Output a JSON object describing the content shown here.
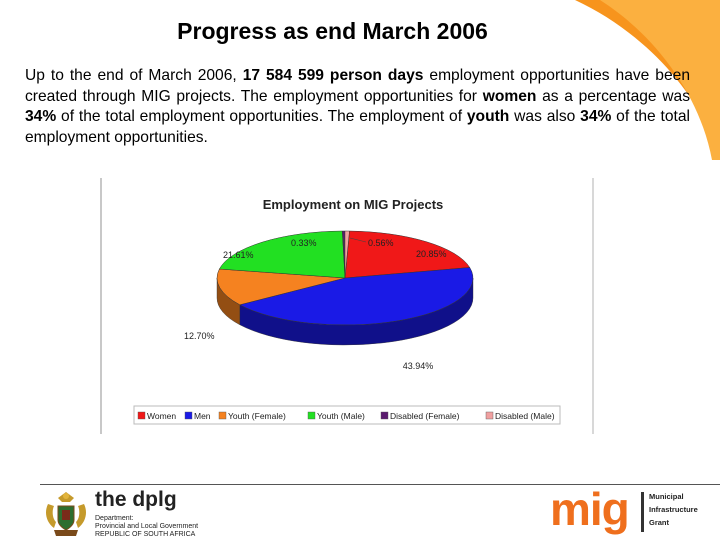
{
  "slide": {
    "title": "Progress as end March 2006",
    "paragraph": [
      {
        "text": "Up to the end of March 2006, ",
        "bold": false
      },
      {
        "text": "17 584 599 person days",
        "bold": true
      },
      {
        "text": " employment opportunities have been created through MIG projects. The employment opportunities for ",
        "bold": false
      },
      {
        "text": "women",
        "bold": true
      },
      {
        "text": " as a percentage was ",
        "bold": false
      },
      {
        "text": "34%",
        "bold": true
      },
      {
        "text": " of the total employment opportunities.  The employment of ",
        "bold": false
      },
      {
        "text": "youth",
        "bold": true
      },
      {
        "text": " was also ",
        "bold": false
      },
      {
        "text": "34%",
        "bold": true
      },
      {
        "text": " of the total employment opportunities.",
        "bold": false
      }
    ]
  },
  "chart_data": {
    "type": "pie",
    "title": "Employment on MIG Projects",
    "slices": [
      {
        "name": "Women",
        "value": 20.85,
        "label": "20.85%",
        "color": "#f01818"
      },
      {
        "name": "Men",
        "value": 43.94,
        "label": "43.94%",
        "color": "#1a1ae6"
      },
      {
        "name": "Youth (Female)",
        "value": 12.7,
        "label": "12.70%",
        "color": "#f58220"
      },
      {
        "name": "Youth (Male)",
        "value": 21.61,
        "label": "21.61%",
        "color": "#22e022"
      },
      {
        "name": "Disabled (Female)",
        "value": 0.33,
        "label": "0.33%",
        "color": "#5a1a6e"
      },
      {
        "name": "Disabled (Male)",
        "value": 0.56,
        "label": "0.56%",
        "color": "#f0a0a0"
      }
    ],
    "legend_position": "bottom"
  },
  "footer": {
    "left_logo": {
      "title": "the dplg",
      "lines": [
        "Department:",
        "Provincial and Local Government",
        "REPUBLIC OF SOUTH AFRICA"
      ]
    },
    "right_logo": {
      "word": "mig",
      "lines": [
        "Municipal",
        "Infrastructure",
        "Grant"
      ],
      "accent": "#ef6f1d"
    }
  }
}
